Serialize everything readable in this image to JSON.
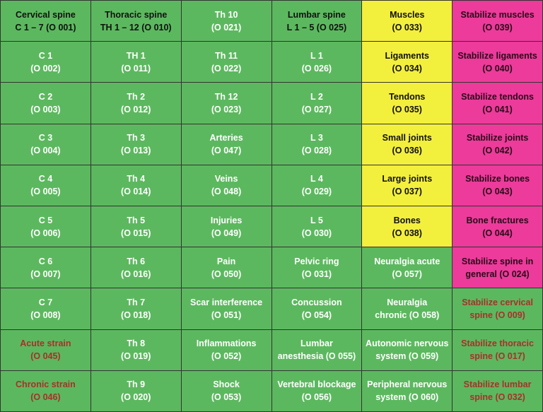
{
  "table": {
    "rows": [
      [
        [
          "Cervical spine",
          "C 1 – 7 (O 001)"
        ],
        [
          "Thoracic spine",
          "TH 1 – 12 (O 010)"
        ],
        [
          "Th 10",
          "(O 021)"
        ],
        [
          "Lumbar spine",
          "L 1 – 5 (O 025)"
        ],
        [
          "Muscles",
          "(O 033)"
        ],
        [
          "Stabilize muscles",
          "(O 039)"
        ]
      ],
      [
        [
          "C 1",
          "(O 002)"
        ],
        [
          "TH 1",
          "(O 011)"
        ],
        [
          "Th 11",
          "(O 022)"
        ],
        [
          "L 1",
          "(O 026)"
        ],
        [
          "Ligaments",
          "(O 034)"
        ],
        [
          "Stabilize ligaments",
          "(O 040)"
        ]
      ],
      [
        [
          "C 2",
          "(O 003)"
        ],
        [
          "Th 2",
          "(O 012)"
        ],
        [
          "Th 12",
          "(O 023)"
        ],
        [
          "L 2",
          "(O 027)"
        ],
        [
          "Tendons",
          "(O 035)"
        ],
        [
          "Stabilize tendons",
          "(O 041)"
        ]
      ],
      [
        [
          "C 3",
          "(O 004)"
        ],
        [
          "Th 3",
          "(O 013)"
        ],
        [
          "Arteries",
          "(O 047)"
        ],
        [
          "L 3",
          "(O 028)"
        ],
        [
          "Small joints",
          "(O 036)"
        ],
        [
          "Stabilize joints",
          "(O 042)"
        ]
      ],
      [
        [
          "C 4",
          "(O 005)"
        ],
        [
          "Th 4",
          "(O 014)"
        ],
        [
          "Veins",
          "(O 048)"
        ],
        [
          "L 4",
          "(O 029)"
        ],
        [
          "Large joints",
          "(O 037)"
        ],
        [
          "Stabilize bones",
          "(O 043)"
        ]
      ],
      [
        [
          "C 5",
          "(O 006)"
        ],
        [
          "Th 5",
          "(O 015)"
        ],
        [
          "Injuries",
          "(O 049)"
        ],
        [
          "L 5",
          "(O 030)"
        ],
        [
          "Bones",
          "(O 038)"
        ],
        [
          "Bone fractures",
          "(O 044)"
        ]
      ],
      [
        [
          "C 6",
          "(O 007)"
        ],
        [
          "Th 6",
          "(O 016)"
        ],
        [
          "Pain",
          "(O 050)"
        ],
        [
          "Pelvic ring",
          "(O 031)"
        ],
        [
          "Neuralgia acute",
          "(O 057)"
        ],
        [
          "Stabilize spine in",
          "general (O 024)"
        ]
      ],
      [
        [
          "C 7",
          "(O 008)"
        ],
        [
          "Th 7",
          "(O 018)"
        ],
        [
          "Scar interference",
          "(O 051)"
        ],
        [
          "Concussion",
          "(O 054)"
        ],
        [
          "Neuralgia",
          "chronic (O 058)"
        ],
        [
          "Stabilize cervical",
          "spine (O 009)"
        ]
      ],
      [
        [
          "Acute strain",
          "(O 045)"
        ],
        [
          "Th 8",
          "(O 019)"
        ],
        [
          "Inflammations",
          "(O 052)"
        ],
        [
          "Lumbar",
          "anesthesia (O 055)"
        ],
        [
          "Autonomic nervous",
          "system (O 059)"
        ],
        [
          "Stabilize thoracic",
          "spine (O 017)"
        ]
      ],
      [
        [
          "Chronic strain",
          "(O 046)"
        ],
        [
          "Th 9",
          "(O 020)"
        ],
        [
          "Shock",
          "(O 053)"
        ],
        [
          "Vertebral blockage",
          "(O 056)"
        ],
        [
          "Peripheral nervous",
          "system (O 060)"
        ],
        [
          "Stabilize lumbar",
          "spine (O 032)"
        ]
      ]
    ]
  }
}
